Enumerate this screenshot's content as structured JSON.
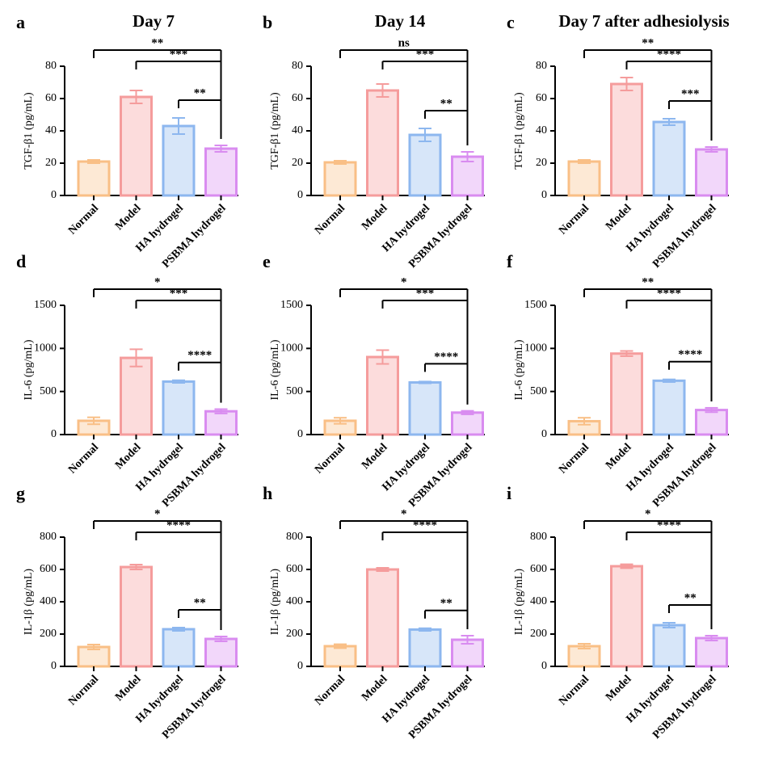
{
  "chart_data": [
    {
      "type": "bar",
      "panel": "a",
      "title": "Day 7",
      "y_label": "TGF-β1 (pg/mL)",
      "categories": [
        "Normal",
        "Model",
        "HA hydrogel",
        "PSBMA hydrogel"
      ],
      "colors": [
        "#f9bf86",
        "#f59c9c",
        "#8db7ef",
        "#d98cf0"
      ],
      "values": [
        21,
        61,
        43,
        29
      ],
      "errors": [
        1,
        4,
        5,
        2
      ],
      "ylim": [
        0,
        80
      ],
      "yticks": [
        0,
        20,
        40,
        60,
        80
      ],
      "significance": [
        {
          "between": [
            "Normal",
            "PSBMA hydrogel"
          ],
          "label": "**"
        },
        {
          "between": [
            "Model",
            "PSBMA hydrogel"
          ],
          "label": "***"
        },
        {
          "between": [
            "HA hydrogel",
            "PSBMA hydrogel"
          ],
          "label": "**"
        }
      ]
    },
    {
      "type": "bar",
      "panel": "b",
      "title": "Day 14",
      "y_label": "TGF-β1 (pg/mL)",
      "categories": [
        "Normal",
        "Model",
        "HA hydrogel",
        "PSBMA hydrogel"
      ],
      "colors": [
        "#f9bf86",
        "#f59c9c",
        "#8db7ef",
        "#d98cf0"
      ],
      "values": [
        20.5,
        65,
        37.5,
        24
      ],
      "errors": [
        1,
        4,
        4,
        3
      ],
      "ylim": [
        0,
        80
      ],
      "yticks": [
        0,
        20,
        40,
        60,
        80
      ],
      "significance": [
        {
          "between": [
            "Normal",
            "PSBMA hydrogel"
          ],
          "label": "ns"
        },
        {
          "between": [
            "Model",
            "PSBMA hydrogel"
          ],
          "label": "***"
        },
        {
          "between": [
            "HA hydrogel",
            "PSBMA hydrogel"
          ],
          "label": "**"
        }
      ]
    },
    {
      "type": "bar",
      "panel": "c",
      "title": "Day 7 after adhesiolysis",
      "y_label": "TGF-β1 (pg/mL)",
      "categories": [
        "Normal",
        "Model",
        "HA hydrogel",
        "PSBMA hydrogel"
      ],
      "colors": [
        "#f9bf86",
        "#f59c9c",
        "#8db7ef",
        "#d98cf0"
      ],
      "values": [
        21,
        69,
        45.5,
        28.5
      ],
      "errors": [
        1,
        4,
        2,
        1.5
      ],
      "ylim": [
        0,
        80
      ],
      "yticks": [
        0,
        20,
        40,
        60,
        80
      ],
      "significance": [
        {
          "between": [
            "Normal",
            "PSBMA hydrogel"
          ],
          "label": "**"
        },
        {
          "between": [
            "Model",
            "PSBMA hydrogel"
          ],
          "label": "****"
        },
        {
          "between": [
            "HA hydrogel",
            "PSBMA hydrogel"
          ],
          "label": "***"
        }
      ]
    },
    {
      "type": "bar",
      "panel": "d",
      "y_label": "IL-6 (pg/mL)",
      "categories": [
        "Normal",
        "Model",
        "HA hydrogel",
        "PSBMA hydrogel"
      ],
      "colors": [
        "#f9bf86",
        "#f59c9c",
        "#8db7ef",
        "#d98cf0"
      ],
      "values": [
        160,
        890,
        615,
        270
      ],
      "errors": [
        40,
        100,
        15,
        25
      ],
      "ylim": [
        0,
        1500
      ],
      "yticks": [
        0,
        500,
        1000,
        1500
      ],
      "significance": [
        {
          "between": [
            "Normal",
            "PSBMA hydrogel"
          ],
          "label": "*"
        },
        {
          "between": [
            "Model",
            "PSBMA hydrogel"
          ],
          "label": "***"
        },
        {
          "between": [
            "HA hydrogel",
            "PSBMA hydrogel"
          ],
          "label": "****"
        }
      ]
    },
    {
      "type": "bar",
      "panel": "e",
      "y_label": "IL-6 (pg/mL)",
      "categories": [
        "Normal",
        "Model",
        "HA hydrogel",
        "PSBMA hydrogel"
      ],
      "colors": [
        "#f9bf86",
        "#f59c9c",
        "#8db7ef",
        "#d98cf0"
      ],
      "values": [
        160,
        900,
        605,
        255
      ],
      "errors": [
        35,
        80,
        10,
        20
      ],
      "ylim": [
        0,
        1500
      ],
      "yticks": [
        0,
        500,
        1000,
        1500
      ],
      "significance": [
        {
          "between": [
            "Normal",
            "PSBMA hydrogel"
          ],
          "label": "*"
        },
        {
          "between": [
            "Model",
            "PSBMA hydrogel"
          ],
          "label": "***"
        },
        {
          "between": [
            "HA hydrogel",
            "PSBMA hydrogel"
          ],
          "label": "****"
        }
      ]
    },
    {
      "type": "bar",
      "panel": "f",
      "y_label": "IL-6 (pg/mL)",
      "categories": [
        "Normal",
        "Model",
        "HA hydrogel",
        "PSBMA hydrogel"
      ],
      "colors": [
        "#f9bf86",
        "#f59c9c",
        "#8db7ef",
        "#d98cf0"
      ],
      "values": [
        155,
        940,
        625,
        285
      ],
      "errors": [
        40,
        30,
        15,
        25
      ],
      "ylim": [
        0,
        1500
      ],
      "yticks": [
        0,
        500,
        1000,
        1500
      ],
      "significance": [
        {
          "between": [
            "Normal",
            "PSBMA hydrogel"
          ],
          "label": "**"
        },
        {
          "between": [
            "Model",
            "PSBMA hydrogel"
          ],
          "label": "****"
        },
        {
          "between": [
            "HA hydrogel",
            "PSBMA hydrogel"
          ],
          "label": "****"
        }
      ]
    },
    {
      "type": "bar",
      "panel": "g",
      "y_label": "IL-1β (pg/mL)",
      "categories": [
        "Normal",
        "Model",
        "HA hydrogel",
        "PSBMA hydrogel"
      ],
      "colors": [
        "#f9bf86",
        "#f59c9c",
        "#8db7ef",
        "#d98cf0"
      ],
      "values": [
        120,
        615,
        230,
        170
      ],
      "errors": [
        15,
        15,
        10,
        15
      ],
      "ylim": [
        0,
        800
      ],
      "yticks": [
        0,
        200,
        400,
        600,
        800
      ],
      "significance": [
        {
          "between": [
            "Normal",
            "PSBMA hydrogel"
          ],
          "label": "*"
        },
        {
          "between": [
            "Model",
            "PSBMA hydrogel"
          ],
          "label": "****"
        },
        {
          "between": [
            "HA hydrogel",
            "PSBMA hydrogel"
          ],
          "label": "**"
        }
      ]
    },
    {
      "type": "bar",
      "panel": "h",
      "y_label": "IL-1β (pg/mL)",
      "categories": [
        "Normal",
        "Model",
        "HA hydrogel",
        "PSBMA hydrogel"
      ],
      "colors": [
        "#f9bf86",
        "#f59c9c",
        "#8db7ef",
        "#d98cf0"
      ],
      "values": [
        125,
        600,
        228,
        165
      ],
      "errors": [
        12,
        10,
        8,
        25
      ],
      "ylim": [
        0,
        800
      ],
      "yticks": [
        0,
        200,
        400,
        600,
        800
      ],
      "significance": [
        {
          "between": [
            "Normal",
            "PSBMA hydrogel"
          ],
          "label": "*"
        },
        {
          "between": [
            "Model",
            "PSBMA hydrogel"
          ],
          "label": "****"
        },
        {
          "between": [
            "HA hydrogel",
            "PSBMA hydrogel"
          ],
          "label": "**"
        }
      ]
    },
    {
      "type": "bar",
      "panel": "i",
      "y_label": "IL-1β (pg/mL)",
      "categories": [
        "Normal",
        "Model",
        "HA hydrogel",
        "PSBMA hydrogel"
      ],
      "colors": [
        "#f9bf86",
        "#f59c9c",
        "#8db7ef",
        "#d98cf0"
      ],
      "values": [
        125,
        620,
        255,
        175
      ],
      "errors": [
        15,
        12,
        15,
        15
      ],
      "ylim": [
        0,
        800
      ],
      "yticks": [
        0,
        200,
        400,
        600,
        800
      ],
      "significance": [
        {
          "between": [
            "Normal",
            "PSBMA hydrogel"
          ],
          "label": "*"
        },
        {
          "between": [
            "Model",
            "PSBMA hydrogel"
          ],
          "label": "****"
        },
        {
          "between": [
            "HA hydrogel",
            "PSBMA hydrogel"
          ],
          "label": "**"
        }
      ]
    }
  ]
}
